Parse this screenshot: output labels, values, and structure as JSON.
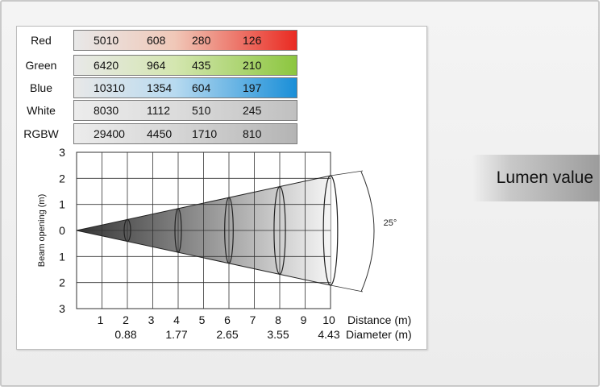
{
  "lumen_table": {
    "rows": [
      {
        "label": "Red",
        "values": [
          "5010",
          "608",
          "280",
          "126"
        ],
        "gradient": [
          "#e8e8e8",
          "#f0c8b8",
          "#ea2a22"
        ]
      },
      {
        "label": "Green",
        "values": [
          "6420",
          "964",
          "435",
          "210"
        ],
        "gradient": [
          "#e8e8e8",
          "#d4e6b0",
          "#8cc63f"
        ]
      },
      {
        "label": "Blue",
        "values": [
          "10310",
          "1354",
          "604",
          "197"
        ],
        "gradient": [
          "#e8e8e8",
          "#b8daf0",
          "#1a8fd8"
        ]
      },
      {
        "label": "White",
        "values": [
          "8030",
          "1112",
          "510",
          "245"
        ],
        "gradient": [
          "#ececec",
          "#dcdcdc",
          "#c0c0c0"
        ]
      },
      {
        "label": "RGBW",
        "values": [
          "29400",
          "4450",
          "1710",
          "810"
        ],
        "gradient": [
          "#ececec",
          "#d6d6d6",
          "#b4b4b4"
        ]
      }
    ]
  },
  "beam_chart": {
    "y_axis_label": "Beam opening (m)",
    "y_ticks": [
      "3",
      "2",
      "1",
      "0",
      "1",
      "2",
      "3"
    ],
    "distance_ticks": [
      "1",
      "2",
      "3",
      "4",
      "5",
      "6",
      "7",
      "8",
      "9",
      "10"
    ],
    "diameter_ticks": [
      {
        "distance": 2,
        "label": "0.88"
      },
      {
        "distance": 4,
        "label": "1.77"
      },
      {
        "distance": 6,
        "label": "2.65"
      },
      {
        "distance": 8,
        "label": "3.55"
      },
      {
        "distance": 10,
        "label": "4.43"
      }
    ],
    "distance_label": "Distance (m)",
    "diameter_label": "Diameter (m)",
    "beam_angle_label": "25°"
  },
  "lumen_tab": {
    "label": "Lumen value"
  }
}
